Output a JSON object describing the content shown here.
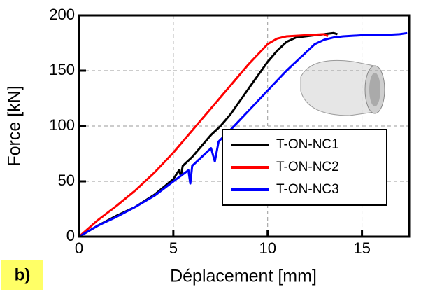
{
  "chart_data": {
    "type": "line",
    "x_label": "Déplacement [mm]",
    "y_label": "Force [kN]",
    "annotation": "b)",
    "xlim": [
      0,
      17.5
    ],
    "ylim": [
      0,
      200
    ],
    "xticks": [
      0,
      5,
      10,
      15
    ],
    "yticks": [
      0,
      50,
      100,
      150,
      200
    ],
    "grid": true,
    "legend": "lower right",
    "series": [
      {
        "name": "T-ON-NC1",
        "color": "#000000",
        "x": [
          0,
          1,
          2,
          3,
          4,
          5,
          5.3,
          5.4,
          5.5,
          6,
          6.5,
          7,
          7.5,
          8,
          8.5,
          9,
          9.5,
          10,
          10.5,
          11,
          11.5,
          12,
          12.5,
          13,
          13.5,
          13.7
        ],
        "values": [
          0,
          10,
          19,
          27,
          38,
          52,
          60,
          55,
          64,
          72,
          82,
          92,
          100,
          110,
          122,
          134,
          146,
          158,
          168,
          176,
          180,
          181,
          182,
          183,
          184,
          183
        ]
      },
      {
        "name": "T-ON-NC2",
        "color": "#ff0000",
        "x": [
          0,
          1,
          2,
          3,
          4,
          5,
          6,
          7,
          8,
          9,
          10,
          10.5,
          11,
          12,
          13,
          13.2
        ],
        "values": [
          0,
          15,
          28,
          42,
          58,
          76,
          96,
          116,
          136,
          156,
          174,
          179,
          181,
          182,
          183,
          181
        ]
      },
      {
        "name": "T-ON-NC3",
        "color": "#0000ff",
        "x": [
          0,
          1,
          2,
          3,
          4,
          5,
          5.8,
          5.9,
          6,
          7,
          7.2,
          7.4,
          8,
          9,
          10,
          11,
          12,
          12.5,
          13,
          13.5,
          14,
          15,
          16,
          17,
          17.4
        ],
        "values": [
          0,
          10,
          18,
          27,
          37,
          50,
          60,
          48,
          64,
          80,
          68,
          86,
          96,
          114,
          132,
          150,
          166,
          174,
          178,
          180,
          181,
          182,
          182,
          183,
          184
        ]
      }
    ]
  }
}
